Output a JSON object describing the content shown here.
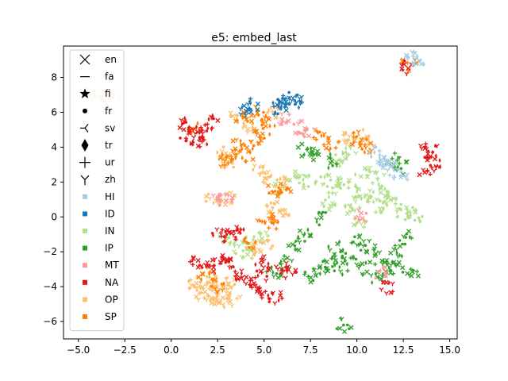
{
  "chart_data": {
    "type": "scatter",
    "title": "e5: embed_last",
    "xlabel": "",
    "ylabel": "",
    "xlim": [
      -5.8,
      15.4
    ],
    "ylim": [
      -7.0,
      9.8
    ],
    "xticks": [
      -5.0,
      -2.5,
      0.0,
      2.5,
      5.0,
      7.5,
      10.0,
      12.5,
      15.0
    ],
    "xtick_labels": [
      "−5.0",
      "−2.5",
      "0.0",
      "2.5",
      "5.0",
      "7.5",
      "10.0",
      "12.5",
      "15.0"
    ],
    "yticks": [
      -6,
      -4,
      -2,
      0,
      2,
      4,
      6,
      8
    ],
    "ytick_labels": [
      "−6",
      "−4",
      "−2",
      "0",
      "2",
      "4",
      "6",
      "8"
    ],
    "grid": false,
    "legend_position": "top-left",
    "legend_markers": [
      {
        "label": "en",
        "marker": "x"
      },
      {
        "label": "fa",
        "marker": "hline"
      },
      {
        "label": "fi",
        "marker": "star"
      },
      {
        "label": "fr",
        "marker": "dot"
      },
      {
        "label": "sv",
        "marker": "tri_left"
      },
      {
        "label": "tr",
        "marker": "thin_diamond"
      },
      {
        "label": "ur",
        "marker": "plus"
      },
      {
        "label": "zh",
        "marker": "tri_down"
      }
    ],
    "legend_colors": [
      {
        "label": "HI",
        "color": "#a6cee3"
      },
      {
        "label": "ID",
        "color": "#1f78b4"
      },
      {
        "label": "IN",
        "color": "#b2df8a"
      },
      {
        "label": "IP",
        "color": "#33a02c"
      },
      {
        "label": "MT",
        "color": "#fb9a99"
      },
      {
        "label": "NA",
        "color": "#e31a1c"
      },
      {
        "label": "OP",
        "color": "#fdbf6f"
      },
      {
        "label": "SP",
        "color": "#ff7f00"
      }
    ],
    "clusters": [
      {
        "category": "IN",
        "points": [
          [
            8.2,
            2.1
          ],
          [
            8.8,
            1.6
          ],
          [
            9.3,
            2.0
          ],
          [
            9.8,
            1.4
          ],
          [
            10.3,
            0.9
          ],
          [
            10.8,
            1.2
          ],
          [
            11.3,
            0.6
          ],
          [
            11.8,
            0.9
          ],
          [
            12.3,
            0.4
          ],
          [
            12.8,
            0.2
          ],
          [
            13.1,
            0.0
          ],
          [
            9.5,
            0.3
          ],
          [
            10.1,
            -0.3
          ],
          [
            8.6,
            0.8
          ],
          [
            9.0,
            3.2
          ],
          [
            9.6,
            3.7
          ],
          [
            10.3,
            2.6
          ],
          [
            7.3,
            2.0
          ],
          [
            6.6,
            2.3
          ],
          [
            5.9,
            1.6
          ],
          [
            4.8,
            -1.1
          ],
          [
            4.3,
            -1.4
          ],
          [
            3.6,
            -1.7
          ],
          [
            2.9,
            -1.3
          ],
          [
            4.0,
            -2.1
          ],
          [
            11.1,
            2.2
          ],
          [
            11.6,
            1.6
          ]
        ]
      },
      {
        "category": "IP",
        "points": [
          [
            7.2,
            3.8
          ],
          [
            7.9,
            3.6
          ],
          [
            8.6,
            3.2
          ],
          [
            10.0,
            -1.3
          ],
          [
            10.6,
            -1.8
          ],
          [
            11.2,
            -2.4
          ],
          [
            11.6,
            -2.8
          ],
          [
            12.1,
            -3.0
          ],
          [
            9.6,
            -2.3
          ],
          [
            9.1,
            -2.9
          ],
          [
            8.6,
            -2.6
          ],
          [
            8.1,
            -3.1
          ],
          [
            7.6,
            -3.4
          ],
          [
            8.9,
            -1.8
          ],
          [
            10.4,
            -2.9
          ],
          [
            11.0,
            -3.4
          ],
          [
            12.2,
            -2.0
          ],
          [
            12.6,
            -1.2
          ],
          [
            12.9,
            -3.3
          ],
          [
            7.1,
            -1.0
          ],
          [
            6.6,
            -1.6
          ],
          [
            6.1,
            -2.6
          ],
          [
            5.6,
            -3.1
          ],
          [
            9.3,
            -6.2
          ],
          [
            8.1,
            -0.1
          ],
          [
            11.9,
            3.4
          ],
          [
            12.5,
            2.8
          ]
        ]
      },
      {
        "category": "OP",
        "points": [
          [
            1.3,
            -3.8
          ],
          [
            1.8,
            -4.2
          ],
          [
            2.3,
            -4.6
          ],
          [
            2.8,
            -4.3
          ],
          [
            3.1,
            -3.9
          ],
          [
            1.6,
            -4.5
          ],
          [
            2.0,
            -3.6
          ],
          [
            2.6,
            -4.9
          ],
          [
            3.4,
            -4.7
          ],
          [
            2.1,
            -4.1
          ],
          [
            3.6,
            5.8
          ],
          [
            4.2,
            5.2
          ],
          [
            2.9,
            3.6
          ],
          [
            3.2,
            2.9
          ],
          [
            4.6,
            2.6
          ],
          [
            5.2,
            2.2
          ],
          [
            5.9,
            1.9
          ],
          [
            2.3,
            1.0
          ],
          [
            3.1,
            1.0
          ],
          [
            5.5,
            0.5
          ],
          [
            6.0,
            0.3
          ],
          [
            5.0,
            -1.6
          ],
          [
            4.5,
            -1.9
          ],
          [
            10.2,
            4.6
          ],
          [
            10.6,
            4.2
          ],
          [
            9.4,
            4.4
          ],
          [
            -4.0,
            7.0
          ],
          [
            -3.2,
            6.8
          ],
          [
            5.5,
            6.1
          ]
        ]
      },
      {
        "category": "SP",
        "points": [
          [
            3.9,
            5.6
          ],
          [
            4.6,
            5.9
          ],
          [
            5.2,
            5.4
          ],
          [
            4.4,
            4.5
          ],
          [
            5.0,
            4.9
          ],
          [
            3.6,
            4.1
          ],
          [
            3.2,
            3.5
          ],
          [
            2.9,
            3.2
          ],
          [
            4.1,
            3.6
          ],
          [
            5.6,
            1.6
          ],
          [
            6.1,
            1.3
          ],
          [
            5.1,
            -0.1
          ],
          [
            5.4,
            -0.5
          ],
          [
            8.6,
            4.2
          ],
          [
            8.1,
            4.6
          ],
          [
            10.0,
            4.5
          ],
          [
            10.5,
            4.1
          ],
          [
            12.8,
            8.7
          ],
          [
            1.9,
            -3.3
          ],
          [
            2.5,
            -3.9
          ],
          [
            4.2,
            -1.6
          ],
          [
            1.3,
            5.0
          ]
        ]
      },
      {
        "category": "NA",
        "points": [
          [
            0.8,
            5.4
          ],
          [
            1.3,
            5.1
          ],
          [
            1.9,
            4.8
          ],
          [
            0.9,
            4.5
          ],
          [
            1.6,
            4.2
          ],
          [
            2.2,
            5.4
          ],
          [
            1.4,
            -2.7
          ],
          [
            1.9,
            -2.9
          ],
          [
            2.6,
            -2.4
          ],
          [
            3.1,
            -2.7
          ],
          [
            3.6,
            -3.2
          ],
          [
            4.1,
            -3.7
          ],
          [
            4.6,
            -3.9
          ],
          [
            5.1,
            -4.3
          ],
          [
            5.6,
            -4.6
          ],
          [
            4.9,
            -3.3
          ],
          [
            5.9,
            -2.8
          ],
          [
            2.6,
            -1.0
          ],
          [
            3.1,
            -1.1
          ],
          [
            3.6,
            -0.8
          ],
          [
            13.7,
            3.6
          ],
          [
            14.1,
            3.1
          ],
          [
            13.8,
            2.6
          ],
          [
            13.9,
            4.0
          ],
          [
            12.6,
            8.6
          ],
          [
            11.6,
            -4.0
          ],
          [
            4.9,
            -2.6
          ],
          [
            6.3,
            -3.2
          ]
        ]
      },
      {
        "category": "ID",
        "points": [
          [
            5.6,
            6.3
          ],
          [
            6.1,
            6.5
          ],
          [
            6.6,
            6.8
          ],
          [
            6.9,
            6.6
          ],
          [
            6.3,
            6.7
          ],
          [
            3.9,
            6.1
          ],
          [
            4.4,
            6.4
          ]
        ]
      },
      {
        "category": "HI",
        "points": [
          [
            13.0,
            9.1
          ],
          [
            13.2,
            8.9
          ],
          [
            11.1,
            3.7
          ],
          [
            11.6,
            3.2
          ],
          [
            11.9,
            2.7
          ],
          [
            12.3,
            2.3
          ],
          [
            11.4,
            2.9
          ]
        ]
      },
      {
        "category": "MT",
        "points": [
          [
            6.9,
            5.1
          ],
          [
            7.4,
            4.9
          ],
          [
            10.2,
            0.0
          ],
          [
            2.9,
            0.9
          ],
          [
            2.6,
            1.2
          ],
          [
            6.1,
            5.6
          ],
          [
            11.3,
            -3.2
          ]
        ]
      }
    ]
  }
}
